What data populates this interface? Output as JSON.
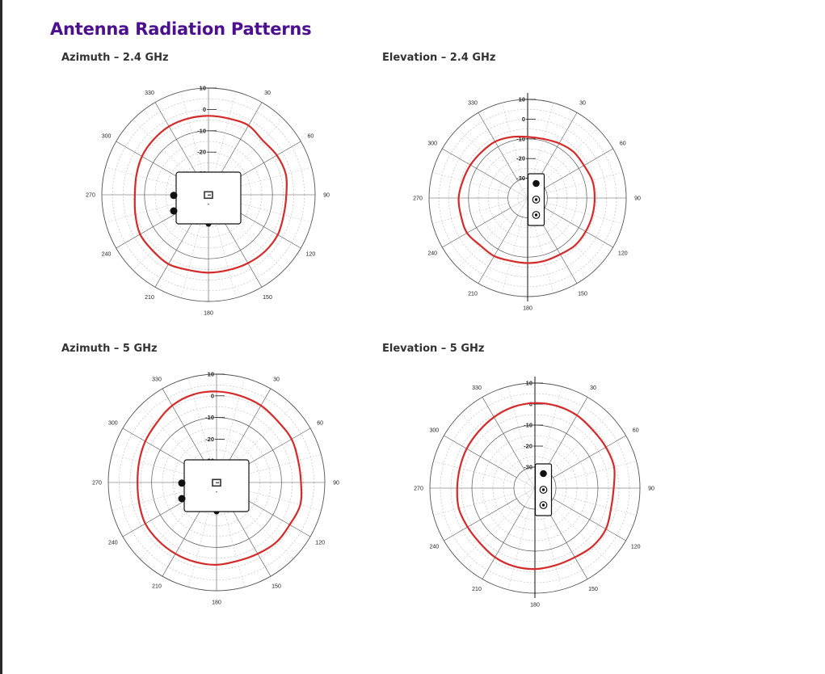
{
  "page": {
    "title": "Antenna Radiation Patterns"
  },
  "colors": {
    "title": "#4b0f8f",
    "trace": "#d42a2a",
    "grid": "#555555",
    "grid_dashed": "#bbbbbb"
  },
  "angle_labels": [
    "0",
    "30",
    "60",
    "90",
    "120",
    "150",
    "180",
    "210",
    "240",
    "270",
    "300",
    "330"
  ],
  "db_labels": [
    "10",
    "0",
    "-10",
    "-20",
    "-30"
  ],
  "chart_data": [
    {
      "type": "polar",
      "title": "Azimuth – 2.4 GHz",
      "plane": "azimuth",
      "radial_ticks_db": [
        10,
        0,
        -10,
        -20,
        -30
      ],
      "r_range_db": [
        -40,
        10
      ],
      "series": [
        {
          "angles_deg": [
            0,
            15,
            30,
            45,
            60,
            75,
            90,
            105,
            120,
            135,
            150,
            165,
            180,
            195,
            210,
            225,
            240,
            255,
            270,
            285,
            300,
            315,
            330,
            345
          ],
          "gain_db": [
            -3,
            -3,
            -2.5,
            -4,
            -3,
            -2.5,
            -3.5,
            -3.5,
            -2.5,
            -2.5,
            -3,
            -3.5,
            -3.5,
            -3.5,
            -2.5,
            -3,
            -3,
            -4.5,
            -5.5,
            -5,
            -4,
            -3.5,
            -3,
            -3
          ]
        }
      ]
    },
    {
      "type": "polar",
      "title": "Elevation – 2.4 GHz",
      "plane": "elevation",
      "radial_ticks_db": [
        10,
        0,
        -10,
        -20,
        -30
      ],
      "r_range_db": [
        -40,
        10
      ],
      "series": [
        {
          "angles_deg": [
            0,
            15,
            30,
            45,
            60,
            75,
            90,
            105,
            120,
            135,
            150,
            165,
            180,
            195,
            210,
            225,
            240,
            255,
            270,
            285,
            300,
            315,
            330,
            345
          ],
          "gain_db": [
            -9,
            -9,
            -8,
            -7,
            -7,
            -6,
            -6,
            -6,
            -6,
            -6,
            -7,
            -7,
            -7,
            -7,
            -6,
            -6,
            -4.5,
            -5,
            -5,
            -6,
            -6.5,
            -7,
            -7,
            -8
          ]
        }
      ]
    },
    {
      "type": "polar",
      "title": "Azimuth – 5 GHz",
      "plane": "azimuth",
      "radial_ticks_db": [
        10,
        0,
        -10,
        -20,
        -30
      ],
      "r_range_db": [
        -40,
        10
      ],
      "series": [
        {
          "angles_deg": [
            0,
            15,
            30,
            45,
            60,
            75,
            90,
            105,
            120,
            135,
            150,
            165,
            180,
            195,
            210,
            225,
            240,
            255,
            270,
            285,
            300,
            315,
            330,
            345
          ],
          "gain_db": [
            2,
            1.5,
            1,
            0,
            0,
            -1,
            -1,
            0,
            -1,
            -1,
            -2,
            -2.5,
            -2,
            -2,
            -2,
            -2,
            -2,
            -3,
            -3.5,
            -3,
            -2,
            -1,
            1,
            2
          ]
        }
      ]
    },
    {
      "type": "polar",
      "title": "Elevation – 5 GHz",
      "plane": "elevation",
      "radial_ticks_db": [
        10,
        0,
        -10,
        -20,
        -30
      ],
      "r_range_db": [
        -40,
        10
      ],
      "series": [
        {
          "angles_deg": [
            0,
            15,
            30,
            45,
            60,
            75,
            90,
            105,
            120,
            135,
            150,
            165,
            180,
            195,
            210,
            225,
            240,
            255,
            270,
            285,
            300,
            315,
            330,
            345
          ],
          "gain_db": [
            0.5,
            0.5,
            0,
            -1,
            -1,
            -1,
            -2.5,
            -2.5,
            -1,
            -1,
            -2,
            -2,
            -1.5,
            -1.5,
            -2,
            -3,
            -3,
            -2.5,
            -3,
            -3,
            -2.5,
            -2,
            -1,
            0
          ]
        }
      ]
    }
  ]
}
